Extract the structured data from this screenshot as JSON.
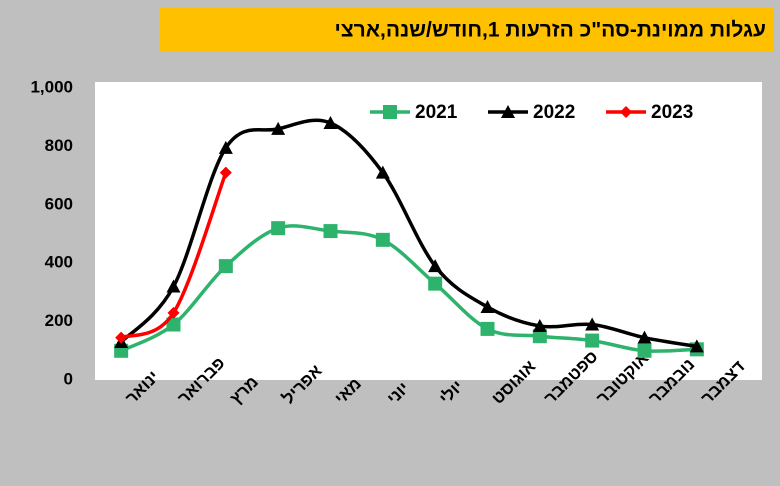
{
  "chart_data": {
    "type": "line",
    "title": "עגלות ממוינת-סה\"כ הזרעות 1,חודש/שנה,ארצי",
    "categories": [
      "ינואר",
      "פברואר",
      "מרץ",
      "אפריל",
      "מאי",
      "יוני",
      "יולי",
      "אוגוסט",
      "ספטמבר",
      "אוקטובר",
      "נובמבר",
      "דצמבר"
    ],
    "series": [
      {
        "name": "2021",
        "color": "#2eb36c",
        "marker": "square",
        "values": [
          100,
          190,
          390,
          520,
          510,
          480,
          330,
          175,
          150,
          135,
          100,
          105
        ]
      },
      {
        "name": "2022",
        "color": "#000000",
        "marker": "triangle",
        "values": [
          130,
          320,
          795,
          860,
          880,
          710,
          390,
          250,
          185,
          190,
          145,
          115
        ]
      },
      {
        "name": "2023",
        "color": "#ff0000",
        "marker": "diamond",
        "values": [
          145,
          230,
          710,
          null,
          null,
          null,
          null,
          null,
          null,
          null,
          null,
          null
        ]
      }
    ],
    "ylim": [
      0,
      1000
    ],
    "yticks": [
      0,
      200,
      400,
      600,
      800,
      {
        "value": 1000,
        "label": "1,000"
      }
    ],
    "grid": false,
    "legend": "top"
  }
}
